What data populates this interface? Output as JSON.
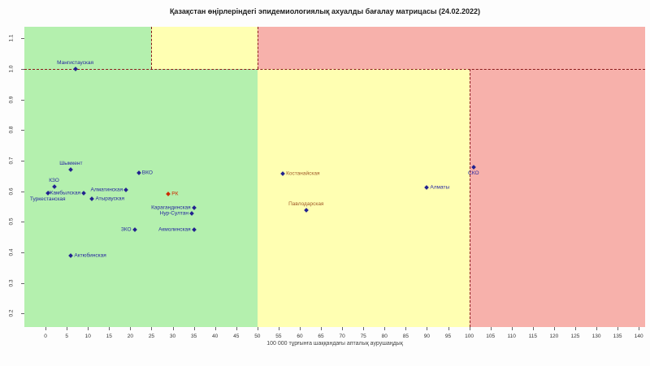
{
  "title": "Қазақстан өңірлеріндегі эпидемиологиялық ахуалды бағалау матрицасы (24.02.2022)",
  "chart_data": {
    "type": "scatter",
    "title": "Қазақстан өңірлеріндегі эпидемиологиялық ахуалды бағалау матрицасы (24.02.2022)",
    "xlabel": "100 000 тұрғынға шаққандағы апталық аурушаңдық",
    "ylabel": "",
    "xlim": [
      -5,
      141.5
    ],
    "ylim": [
      0.156,
      1.138
    ],
    "grid": false,
    "x_ticks": [
      0,
      5,
      10,
      15,
      20,
      25,
      30,
      35,
      40,
      45,
      50,
      55,
      60,
      65,
      70,
      75,
      80,
      85,
      90,
      95,
      100,
      105,
      110,
      115,
      120,
      125,
      130,
      135,
      140
    ],
    "y_ticks": [
      0.2,
      0.3,
      0.4,
      0.5,
      0.6,
      0.7,
      0.8,
      0.9,
      1.0,
      1.1
    ],
    "colors": {
      "zone_green": "#b4f0ae",
      "zone_yellow": "#ffffb2",
      "zone_red": "#f7b1ab",
      "threshold_line": "#8b1a1a",
      "point_default": "#22228f",
      "label_default": "#2626a0",
      "label_warn": "#a05a28",
      "label_rk": "#cc2a00"
    },
    "thresholds": {
      "rt_line": 1.0,
      "incidence_green_yellow_above_line": 25,
      "incidence_yellow_red_above_line": 50,
      "incidence_green_yellow_below_line": 50,
      "incidence_yellow_red_below_line": 100
    },
    "zones": [
      {
        "name": "green-top",
        "x0": -5,
        "x1": 25,
        "y0": 1.0,
        "y1": 1.138,
        "color": "zone_green"
      },
      {
        "name": "yellow-top",
        "x0": 25,
        "x1": 50,
        "y0": 1.0,
        "y1": 1.138,
        "color": "zone_yellow"
      },
      {
        "name": "red-top",
        "x0": 50,
        "x1": 141.5,
        "y0": 1.0,
        "y1": 1.138,
        "color": "zone_red"
      },
      {
        "name": "green-bottom",
        "x0": -5,
        "x1": 50,
        "y0": 0.156,
        "y1": 1.0,
        "color": "zone_green"
      },
      {
        "name": "yellow-bottom",
        "x0": 50,
        "x1": 100,
        "y0": 0.156,
        "y1": 1.0,
        "color": "zone_yellow"
      },
      {
        "name": "red-bottom",
        "x0": 100,
        "x1": 141.5,
        "y0": 0.156,
        "y1": 1.0,
        "color": "zone_red"
      }
    ],
    "threshold_lines": [
      {
        "orient": "h",
        "at": 1.0,
        "from": -5,
        "to": 141.5
      },
      {
        "orient": "v",
        "at": 25,
        "from": 1.0,
        "to": 1.138
      },
      {
        "orient": "v",
        "at": 50,
        "from": 1.0,
        "to": 1.138
      },
      {
        "orient": "v",
        "at": 100,
        "from": 0.156,
        "to": 1.0
      }
    ],
    "points": [
      {
        "label": "Мангистауская",
        "x": 7,
        "y": 1.0,
        "pos": "above",
        "label_color": "label_default",
        "point_color": "point_default"
      },
      {
        "label": "Шымкент",
        "x": 6,
        "y": 0.67,
        "pos": "above",
        "label_color": "label_default",
        "point_color": "point_default"
      },
      {
        "label": "КЗО",
        "x": 2,
        "y": 0.615,
        "pos": "above",
        "label_color": "label_default",
        "point_color": "point_default"
      },
      {
        "label": "ВКО",
        "x": 22,
        "y": 0.66,
        "pos": "right",
        "label_color": "label_default",
        "point_color": "point_default"
      },
      {
        "label": "Алматинская",
        "x": 19,
        "y": 0.605,
        "pos": "left",
        "label_color": "label_default",
        "point_color": "point_default"
      },
      {
        "label": "Жамбылская",
        "x": 9,
        "y": 0.594,
        "pos": "left",
        "label_color": "label_default",
        "point_color": "point_default"
      },
      {
        "label": "Туркестанская",
        "x": 0.5,
        "y": 0.594,
        "pos": "below",
        "label_color": "label_default",
        "point_color": "point_default"
      },
      {
        "label": "Атырауская",
        "x": 11,
        "y": 0.576,
        "pos": "right",
        "label_color": "label_default",
        "point_color": "point_default"
      },
      {
        "label": "РК",
        "x": 29,
        "y": 0.592,
        "pos": "right",
        "label_color": "label_rk",
        "point_color": "label_rk"
      },
      {
        "label": "Карагандинская",
        "x": 35,
        "y": 0.546,
        "pos": "left",
        "label_color": "label_default",
        "point_color": "point_default"
      },
      {
        "label": "Нур-Султан",
        "x": 34.5,
        "y": 0.528,
        "pos": "left",
        "label_color": "label_default",
        "point_color": "point_default"
      },
      {
        "label": "ЗКО",
        "x": 21,
        "y": 0.475,
        "pos": "left",
        "label_color": "label_default",
        "point_color": "point_default"
      },
      {
        "label": "Акмолинская",
        "x": 35,
        "y": 0.475,
        "pos": "left",
        "label_color": "label_default",
        "point_color": "point_default"
      },
      {
        "label": "Актюбинская",
        "x": 6,
        "y": 0.39,
        "pos": "right",
        "label_color": "label_default",
        "point_color": "point_default"
      },
      {
        "label": "Костанайская",
        "x": 56,
        "y": 0.658,
        "pos": "right",
        "label_color": "label_warn",
        "point_color": "point_default"
      },
      {
        "label": "Павлодарская",
        "x": 61.5,
        "y": 0.538,
        "pos": "above",
        "label_color": "label_warn",
        "point_color": "point_default"
      },
      {
        "label": "Алматы",
        "x": 90,
        "y": 0.613,
        "pos": "right",
        "label_color": "label_default",
        "point_color": "point_default"
      },
      {
        "label": "СКО",
        "x": 101,
        "y": 0.679,
        "pos": "below",
        "label_color": "label_default",
        "point_color": "point_default"
      }
    ]
  }
}
